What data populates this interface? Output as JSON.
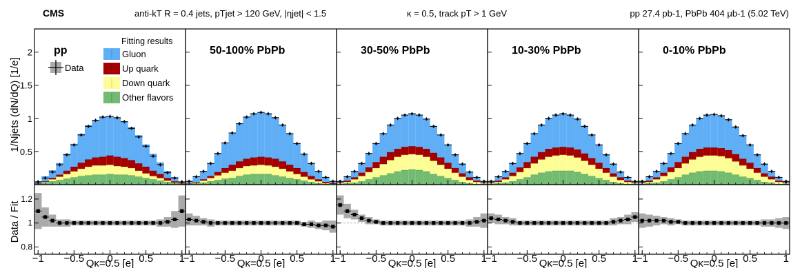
{
  "header": {
    "experiment": "CMS",
    "jets": "anti-kT R = 0.4 jets, pTjet > 120 GeV, |ηjet| < 1.5",
    "kappa": "κ = 0.5, track pT > 1 GeV",
    "lumi": "pp 27.4 pb-1, PbPb 404 μb-1 (5.02 TeV)"
  },
  "colors": {
    "gluon_fill": "#60aef5",
    "gluon_line": "#3f8fe0",
    "up_fill": "#a50000",
    "up_line": "#7a0000",
    "down_fill": "#fdfd96",
    "down_line": "#d8d860",
    "other_fill": "#73bb73",
    "other_line": "#3e9a3e",
    "error_band": "#aaaaaa"
  },
  "legend": {
    "data_label": "Data",
    "fit_title": "Fitting results",
    "entries": [
      "Gluon",
      "Up quark",
      "Down quark",
      "Other flavors"
    ]
  },
  "chart_data": {
    "type": "area",
    "bins": [
      -1.05,
      -0.95,
      -0.85,
      -0.75,
      -0.65,
      -0.55,
      -0.45,
      -0.35,
      -0.25,
      -0.15,
      -0.05,
      0.05,
      0.15,
      0.25,
      0.35,
      0.45,
      0.55,
      0.65,
      0.75,
      0.85,
      0.95,
      1.05
    ],
    "x_center": [
      -1.0,
      -0.9,
      -0.8,
      -0.7,
      -0.6,
      -0.5,
      -0.4,
      -0.3,
      -0.2,
      -0.1,
      0.0,
      0.1,
      0.2,
      0.3,
      0.4,
      0.5,
      0.6,
      0.7,
      0.8,
      0.9,
      1.0
    ],
    "xlim": [
      -1.05,
      1.05
    ],
    "xticks": [
      -1,
      -0.5,
      0,
      0.5,
      1
    ],
    "xtick_labels": [
      "−1",
      "−0.5",
      "0",
      "0.5",
      "1"
    ],
    "xlabel": "Qκ=0.5 [e]",
    "ylabel_top": "1/Njets (dN/dQ) [1/e]",
    "ylim_top": [
      0,
      2.35
    ],
    "yticks_top": [
      0.5,
      1,
      1.5,
      2
    ],
    "ytick_labels_top": [
      "0.5",
      "1",
      "1.5",
      "2"
    ],
    "ylabel_ratio": "Data / Fit",
    "ylim_ratio": [
      0.74,
      1.32
    ],
    "yticks_ratio": [
      0.8,
      1,
      1.2
    ],
    "ytick_labels_ratio": [
      "0.8",
      "1",
      "1.2"
    ],
    "panels": [
      {
        "label": "pp",
        "data": [
          0.04,
          0.1,
          0.19,
          0.3,
          0.45,
          0.6,
          0.75,
          0.88,
          0.97,
          1.02,
          1.03,
          1.01,
          0.95,
          0.85,
          0.72,
          0.58,
          0.43,
          0.3,
          0.18,
          0.1,
          0.04
        ],
        "gluon": [
          0.03,
          0.07,
          0.11,
          0.17,
          0.25,
          0.34,
          0.43,
          0.51,
          0.56,
          0.59,
          0.59,
          0.58,
          0.55,
          0.49,
          0.42,
          0.33,
          0.25,
          0.17,
          0.1,
          0.06,
          0.02
        ],
        "up": [
          0.005,
          0.01,
          0.02,
          0.03,
          0.05,
          0.07,
          0.09,
          0.11,
          0.12,
          0.13,
          0.14,
          0.14,
          0.13,
          0.12,
          0.11,
          0.1,
          0.08,
          0.06,
          0.04,
          0.02,
          0.01
        ],
        "down": [
          0.003,
          0.01,
          0.03,
          0.05,
          0.07,
          0.09,
          0.11,
          0.13,
          0.14,
          0.14,
          0.14,
          0.13,
          0.12,
          0.11,
          0.09,
          0.07,
          0.05,
          0.04,
          0.02,
          0.01,
          0.005
        ],
        "other": [
          0.01,
          0.03,
          0.05,
          0.07,
          0.09,
          0.11,
          0.13,
          0.14,
          0.15,
          0.15,
          0.16,
          0.15,
          0.15,
          0.14,
          0.12,
          0.1,
          0.08,
          0.06,
          0.04,
          0.02,
          0.01
        ],
        "ratio": [
          1.1,
          1.05,
          1.02,
          1.0,
          1.0,
          1.0,
          1.0,
          1.0,
          1.0,
          1.0,
          1.0,
          1.0,
          1.0,
          1.0,
          1.0,
          1.0,
          1.0,
          1.0,
          1.01,
          1.03,
          1.1
        ],
        "ratio_err": [
          0.15,
          0.08,
          0.05,
          0.03,
          0.03,
          0.02,
          0.02,
          0.02,
          0.02,
          0.02,
          0.02,
          0.02,
          0.02,
          0.02,
          0.02,
          0.02,
          0.02,
          0.03,
          0.04,
          0.07,
          0.13
        ]
      },
      {
        "label": "50-100% PbPb",
        "data": [
          0.05,
          0.12,
          0.2,
          0.32,
          0.47,
          0.63,
          0.78,
          0.92,
          1.02,
          1.07,
          1.09,
          1.07,
          1.01,
          0.9,
          0.77,
          0.62,
          0.46,
          0.32,
          0.2,
          0.11,
          0.05
        ],
        "gluon": [
          0.03,
          0.08,
          0.12,
          0.19,
          0.28,
          0.38,
          0.48,
          0.57,
          0.63,
          0.66,
          0.67,
          0.66,
          0.62,
          0.55,
          0.47,
          0.37,
          0.27,
          0.19,
          0.12,
          0.07,
          0.03
        ],
        "up": [
          0.005,
          0.01,
          0.02,
          0.03,
          0.05,
          0.07,
          0.09,
          0.1,
          0.11,
          0.12,
          0.12,
          0.12,
          0.12,
          0.11,
          0.1,
          0.09,
          0.07,
          0.05,
          0.03,
          0.02,
          0.01
        ],
        "down": [
          0.005,
          0.01,
          0.03,
          0.05,
          0.07,
          0.09,
          0.11,
          0.12,
          0.13,
          0.13,
          0.14,
          0.13,
          0.13,
          0.12,
          0.1,
          0.08,
          0.06,
          0.04,
          0.03,
          0.01,
          0.005
        ],
        "other": [
          0.01,
          0.02,
          0.03,
          0.05,
          0.07,
          0.09,
          0.1,
          0.13,
          0.15,
          0.16,
          0.16,
          0.16,
          0.14,
          0.12,
          0.1,
          0.08,
          0.06,
          0.04,
          0.02,
          0.01,
          0.005
        ],
        "ratio": [
          1.03,
          1.02,
          1.01,
          1.0,
          1.0,
          1.0,
          1.0,
          1.0,
          1.0,
          1.0,
          1.0,
          1.0,
          1.0,
          1.0,
          1.0,
          1.0,
          0.99,
          0.99,
          0.98,
          0.98,
          0.97
        ],
        "ratio_err": [
          0.05,
          0.04,
          0.03,
          0.03,
          0.02,
          0.02,
          0.02,
          0.02,
          0.02,
          0.02,
          0.02,
          0.02,
          0.02,
          0.02,
          0.02,
          0.02,
          0.02,
          0.03,
          0.03,
          0.04,
          0.05
        ]
      },
      {
        "label": "30-50% PbPb",
        "data": [
          0.05,
          0.12,
          0.2,
          0.32,
          0.47,
          0.62,
          0.77,
          0.9,
          1.0,
          1.05,
          1.07,
          1.05,
          0.99,
          0.88,
          0.75,
          0.6,
          0.45,
          0.31,
          0.19,
          0.11,
          0.05
        ],
        "gluon": [
          0.02,
          0.06,
          0.09,
          0.14,
          0.21,
          0.28,
          0.35,
          0.41,
          0.46,
          0.48,
          0.49,
          0.48,
          0.45,
          0.4,
          0.34,
          0.27,
          0.2,
          0.14,
          0.08,
          0.05,
          0.02
        ],
        "up": [
          0.01,
          0.02,
          0.03,
          0.05,
          0.07,
          0.09,
          0.11,
          0.12,
          0.12,
          0.12,
          0.12,
          0.12,
          0.12,
          0.12,
          0.11,
          0.09,
          0.07,
          0.05,
          0.04,
          0.02,
          0.01
        ],
        "down": [
          0.01,
          0.02,
          0.05,
          0.08,
          0.11,
          0.14,
          0.17,
          0.2,
          0.22,
          0.23,
          0.23,
          0.23,
          0.22,
          0.2,
          0.17,
          0.14,
          0.11,
          0.08,
          0.05,
          0.03,
          0.01
        ],
        "other": [
          0.01,
          0.02,
          0.03,
          0.05,
          0.08,
          0.11,
          0.14,
          0.17,
          0.2,
          0.22,
          0.23,
          0.22,
          0.2,
          0.16,
          0.13,
          0.1,
          0.07,
          0.04,
          0.02,
          0.01,
          0.01
        ],
        "ratio": [
          1.15,
          1.1,
          1.07,
          1.04,
          1.02,
          1.01,
          1.0,
          1.0,
          1.0,
          1.0,
          1.0,
          1.0,
          1.0,
          1.0,
          1.0,
          1.0,
          1.0,
          1.0,
          1.0,
          1.01,
          1.02
        ],
        "ratio_err": [
          0.08,
          0.06,
          0.04,
          0.03,
          0.03,
          0.02,
          0.02,
          0.02,
          0.02,
          0.02,
          0.02,
          0.02,
          0.02,
          0.02,
          0.02,
          0.02,
          0.02,
          0.02,
          0.03,
          0.04,
          0.06
        ]
      },
      {
        "label": "10-30% PbPb",
        "data": [
          0.05,
          0.12,
          0.2,
          0.32,
          0.47,
          0.62,
          0.77,
          0.9,
          1.0,
          1.05,
          1.07,
          1.05,
          0.99,
          0.88,
          0.75,
          0.6,
          0.45,
          0.31,
          0.19,
          0.11,
          0.05
        ],
        "gluon": [
          0.02,
          0.06,
          0.09,
          0.14,
          0.21,
          0.28,
          0.35,
          0.41,
          0.46,
          0.49,
          0.5,
          0.49,
          0.46,
          0.41,
          0.35,
          0.27,
          0.2,
          0.14,
          0.08,
          0.05,
          0.02
        ],
        "up": [
          0.01,
          0.02,
          0.03,
          0.05,
          0.07,
          0.09,
          0.1,
          0.11,
          0.12,
          0.12,
          0.12,
          0.12,
          0.12,
          0.11,
          0.1,
          0.09,
          0.07,
          0.05,
          0.04,
          0.02,
          0.01
        ],
        "down": [
          0.01,
          0.02,
          0.05,
          0.08,
          0.11,
          0.14,
          0.17,
          0.2,
          0.22,
          0.23,
          0.24,
          0.23,
          0.22,
          0.2,
          0.17,
          0.14,
          0.11,
          0.08,
          0.05,
          0.03,
          0.01
        ],
        "other": [
          0.01,
          0.02,
          0.03,
          0.05,
          0.08,
          0.11,
          0.15,
          0.18,
          0.2,
          0.21,
          0.21,
          0.21,
          0.19,
          0.16,
          0.13,
          0.1,
          0.07,
          0.04,
          0.02,
          0.01,
          0.01
        ],
        "ratio": [
          1.04,
          1.03,
          1.02,
          1.01,
          1.0,
          1.0,
          1.0,
          1.0,
          1.0,
          1.0,
          1.0,
          1.0,
          1.0,
          1.0,
          1.0,
          1.0,
          1.0,
          1.01,
          1.02,
          1.03,
          1.05
        ],
        "ratio_err": [
          0.04,
          0.04,
          0.03,
          0.03,
          0.02,
          0.02,
          0.02,
          0.02,
          0.02,
          0.02,
          0.02,
          0.02,
          0.02,
          0.02,
          0.02,
          0.02,
          0.02,
          0.03,
          0.03,
          0.04,
          0.04
        ]
      },
      {
        "label": "0-10% PbPb",
        "data": [
          0.05,
          0.12,
          0.2,
          0.32,
          0.47,
          0.62,
          0.77,
          0.9,
          1.0,
          1.05,
          1.06,
          1.04,
          0.98,
          0.87,
          0.74,
          0.6,
          0.45,
          0.31,
          0.2,
          0.11,
          0.05
        ],
        "gluon": [
          0.02,
          0.06,
          0.09,
          0.14,
          0.21,
          0.28,
          0.35,
          0.41,
          0.46,
          0.49,
          0.5,
          0.49,
          0.46,
          0.41,
          0.35,
          0.27,
          0.2,
          0.14,
          0.08,
          0.05,
          0.02
        ],
        "up": [
          0.01,
          0.02,
          0.03,
          0.05,
          0.07,
          0.09,
          0.1,
          0.11,
          0.12,
          0.12,
          0.12,
          0.12,
          0.12,
          0.11,
          0.1,
          0.09,
          0.07,
          0.05,
          0.04,
          0.02,
          0.01
        ],
        "down": [
          0.01,
          0.02,
          0.05,
          0.08,
          0.11,
          0.14,
          0.17,
          0.2,
          0.22,
          0.23,
          0.23,
          0.23,
          0.22,
          0.2,
          0.17,
          0.14,
          0.11,
          0.08,
          0.05,
          0.03,
          0.01
        ],
        "other": [
          0.01,
          0.02,
          0.03,
          0.05,
          0.08,
          0.11,
          0.15,
          0.18,
          0.2,
          0.21,
          0.21,
          0.2,
          0.18,
          0.15,
          0.12,
          0.1,
          0.07,
          0.04,
          0.03,
          0.01,
          0.01
        ],
        "ratio": [
          1.02,
          1.02,
          1.02,
          1.02,
          1.01,
          1.01,
          1.0,
          1.0,
          1.0,
          1.0,
          1.0,
          1.0,
          1.0,
          1.0,
          1.0,
          1.0,
          1.0,
          1.0,
          1.0,
          1.0,
          1.0
        ],
        "ratio_err": [
          0.06,
          0.05,
          0.04,
          0.03,
          0.03,
          0.02,
          0.02,
          0.02,
          0.02,
          0.02,
          0.02,
          0.02,
          0.02,
          0.02,
          0.02,
          0.02,
          0.02,
          0.03,
          0.03,
          0.04,
          0.05
        ]
      }
    ]
  }
}
